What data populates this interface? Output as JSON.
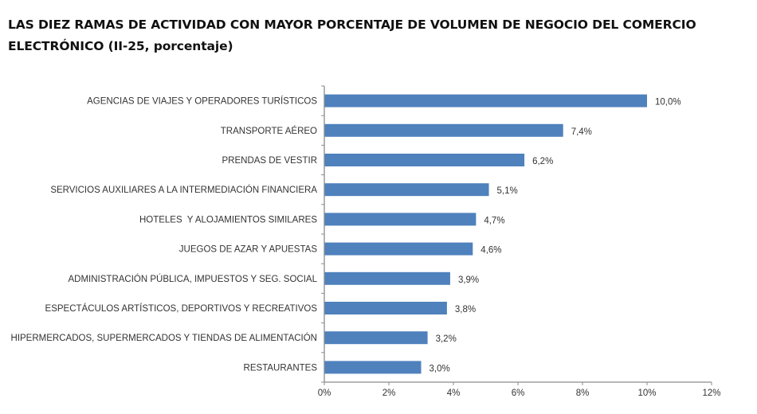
{
  "chart_data": {
    "type": "bar",
    "orientation": "horizontal",
    "title": "LAS DIEZ RAMAS DE ACTIVIDAD CON MAYOR PORCENTAJE DE VOLUMEN DE NEGOCIO DEL COMERCIO ELECTRÓNICO (II-25, porcentaje)",
    "title_lines": [
      "LAS DIEZ RAMAS DE ACTIVIDAD CON MAYOR PORCENTAJE DE VOLUMEN DE NEGOCIO DEL COMERCIO",
      "ELECTRÓNICO (II-25, porcentaje)"
    ],
    "xlabel": "",
    "ylabel": "",
    "categories": [
      "AGENCIAS DE VIAJES Y OPERADORES TURÍSTICOS",
      "TRANSPORTE AÉREO",
      "PRENDAS DE VESTIR",
      "SERVICIOS AUXILIARES A LA INTERMEDIACIÓN FINANCIERA",
      "HOTELES  Y ALOJAMIENTOS SIMILARES",
      "JUEGOS DE AZAR Y APUESTAS",
      "ADMINISTRACIÓN PÚBLICA, IMPUESTOS Y SEG. SOCIAL",
      "ESPECTÁCULOS ARTÍSTICOS, DEPORTIVOS Y RECREATIVOS",
      "HIPERMERCADOS, SUPERMERCADOS Y TIENDAS DE ALIMENTACIÓN",
      "RESTAURANTES"
    ],
    "values": [
      10.0,
      7.4,
      6.2,
      5.1,
      4.7,
      4.6,
      3.9,
      3.8,
      3.2,
      3.0
    ],
    "value_labels": [
      "10,0%",
      "7,4%",
      "6,2%",
      "5,1%",
      "4,7%",
      "4,6%",
      "3,9%",
      "3,8%",
      "3,2%",
      "3,0%"
    ],
    "xlim": [
      0,
      12
    ],
    "x_ticks": [
      0,
      2,
      4,
      6,
      8,
      10,
      12
    ],
    "x_tick_labels": [
      "0%",
      "2%",
      "4%",
      "6%",
      "8%",
      "10%",
      "12%"
    ],
    "grid": false,
    "legend": "none",
    "colors": {
      "bar": "#4f81bd",
      "axis": "#8c8c8c",
      "text": "#333333"
    }
  }
}
